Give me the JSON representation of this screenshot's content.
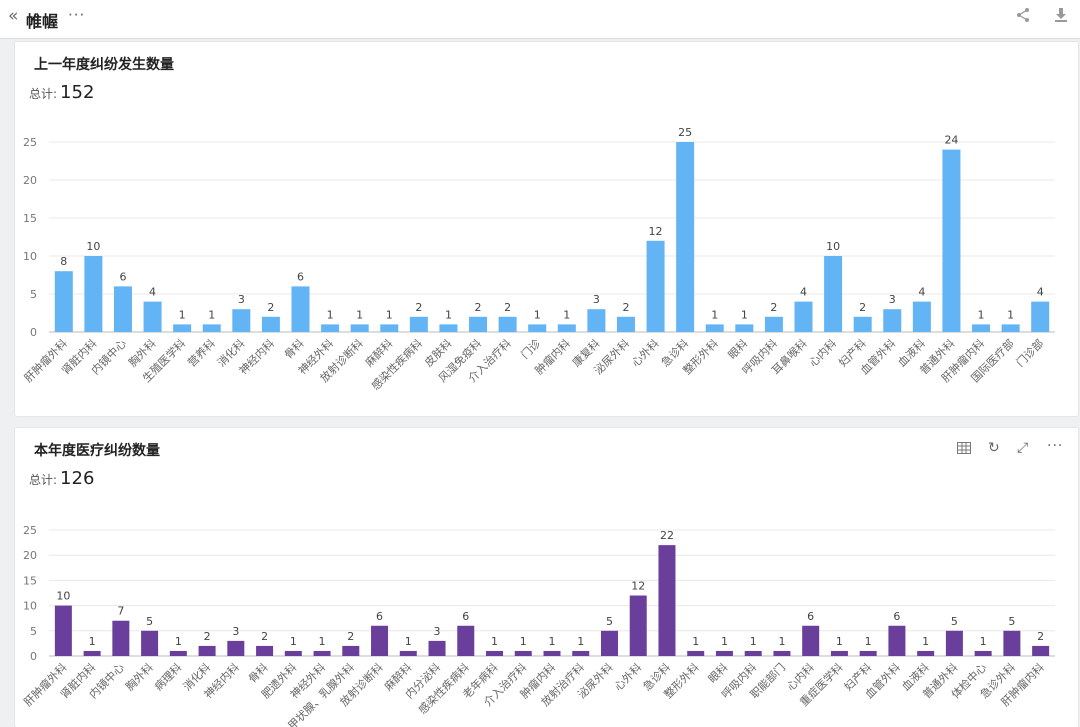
{
  "topbar": {
    "back_icon": "double-chevron-left-icon",
    "title": "帷幄",
    "more_icon": "ellipsis-icon",
    "share_icon": "share-icon",
    "download_icon": "download-icon"
  },
  "card1": {
    "title": "上一年度纠纷发生数量",
    "total_label": "总计:",
    "total_value": "152"
  },
  "card2": {
    "title": "本年度医疗纠纷数量",
    "total_label": "总计:",
    "total_value": "126",
    "tools": [
      "table-icon",
      "refresh-icon",
      "expand-icon",
      "more-icon"
    ]
  },
  "colors": {
    "series1": "#62b4f5",
    "series2": "#6a3f9c",
    "grid": "#e8e8e8",
    "axis": "#bbbbbb"
  },
  "chart_data": [
    {
      "type": "bar",
      "title": "上一年度纠纷发生数量",
      "categories": [
        "肝肿瘤外科",
        "肾脏内科",
        "内镜中心",
        "胸外科",
        "生殖医学科",
        "营养科",
        "消化科",
        "神经内科",
        "骨科",
        "神经外科",
        "放射诊断科",
        "麻醉科",
        "感染性疾病科",
        "皮肤科",
        "风湿免疫科",
        "介入治疗科",
        "门诊",
        "肿瘤内科",
        "康复科",
        "泌尿外科",
        "心外科",
        "急诊科",
        "整形外科",
        "眼科",
        "呼吸内科",
        "耳鼻喉科",
        "心内科",
        "妇产科",
        "血管外科",
        "血液科",
        "普通外科",
        "肝肿瘤内科",
        "国际医疗部",
        "门诊部"
      ],
      "values": [
        8,
        10,
        6,
        4,
        1,
        1,
        3,
        2,
        6,
        1,
        1,
        1,
        2,
        1,
        2,
        2,
        1,
        1,
        3,
        2,
        12,
        25,
        1,
        1,
        2,
        4,
        10,
        2,
        3,
        4,
        24,
        1,
        1,
        4
      ],
      "ylim": [
        0,
        25
      ],
      "yticks": [
        0,
        5,
        10,
        15,
        20,
        25
      ],
      "grid": true,
      "legend": "none"
    },
    {
      "type": "bar",
      "title": "本年度医疗纠纷数量",
      "categories": [
        "肝肿瘤外科",
        "肾脏内科",
        "内镜中心",
        "胸外科",
        "病理科",
        "消化科",
        "神经内科",
        "骨科",
        "肥遗外科",
        "神经外科",
        "甲状腺、乳腺外科",
        "放射诊断科",
        "麻醉科",
        "内分泌科",
        "感染性疾病科",
        "老年病科",
        "介入治疗科",
        "肿瘤内科",
        "放射治疗科",
        "泌尿外科",
        "心外科",
        "急诊科",
        "整形外科",
        "眼科",
        "呼吸内科",
        "职能部门",
        "心内科",
        "重症医学科",
        "妇产科",
        "血管外科",
        "血液科",
        "普通外科",
        "体检中心",
        "急诊外科",
        "肝肿瘤内科"
      ],
      "values": [
        10,
        1,
        7,
        5,
        1,
        2,
        3,
        2,
        1,
        1,
        2,
        6,
        1,
        3,
        6,
        1,
        1,
        1,
        1,
        5,
        12,
        22,
        1,
        1,
        1,
        1,
        6,
        1,
        1,
        6,
        1,
        5,
        1,
        5,
        2
      ],
      "ylim": [
        0,
        25
      ],
      "yticks": [
        0,
        5,
        10,
        15,
        20,
        25
      ],
      "grid": true,
      "legend": "none"
    }
  ]
}
